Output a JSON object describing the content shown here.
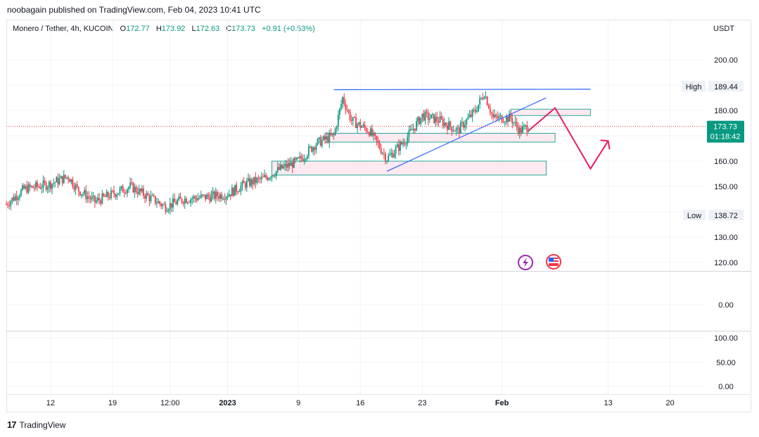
{
  "header": {
    "publisher": "noobagain published on TradingView.com, Feb 04, 2023 10:41 UTC"
  },
  "legend": {
    "symbol": "Monero / Tether, 4h, KUCOIN",
    "open_label": "O",
    "open": "172.77",
    "high_label": "H",
    "high": "173.92",
    "low_label": "L",
    "low": "172.63",
    "close_label": "C",
    "close": "173.73",
    "change": "+0.91 (+0.53%)"
  },
  "price_axis": {
    "currency": "USDT",
    "ticks": [
      "200.00",
      "180.00",
      "160.00",
      "150.00",
      "130.00",
      "120.00"
    ],
    "high_tag": {
      "label": "High",
      "value": "189.44"
    },
    "low_tag": {
      "label": "Low",
      "value": "138.72"
    },
    "last_price": {
      "value": "173.73",
      "countdown": "01:18:42"
    }
  },
  "indicator_panes": [
    {
      "ticks": [
        "0.00"
      ]
    },
    {
      "ticks": [
        "100.00",
        "50.00",
        "0.00"
      ]
    }
  ],
  "time_axis": {
    "labels": [
      "12",
      "19",
      "12:00",
      "2023",
      "9",
      "16",
      "23",
      "Feb",
      "13",
      "20"
    ]
  },
  "footer": {
    "brand": "TradingView"
  },
  "colors": {
    "up": "#089981",
    "down": "#f23645",
    "trendline": "#2962ff",
    "projection": "#e91e63",
    "zone_fill": "#fce4ec",
    "zone_border": "#26a69a",
    "last_price_bg": "#089981"
  },
  "chart_data": {
    "type": "candlestick",
    "title": "Monero / Tether, 4h, KUCOIN",
    "ylabel": "USDT",
    "ylim": [
      113,
      207
    ],
    "x_range": [
      "2022-12-07",
      "2023-02-24"
    ],
    "daily_closes": [
      {
        "date": "2022-12-07",
        "close": 143
      },
      {
        "date": "2022-12-09",
        "close": 149
      },
      {
        "date": "2022-12-12",
        "close": 151
      },
      {
        "date": "2022-12-14",
        "close": 154
      },
      {
        "date": "2022-12-15",
        "close": 149
      },
      {
        "date": "2022-12-17",
        "close": 144
      },
      {
        "date": "2022-12-19",
        "close": 147
      },
      {
        "date": "2022-12-21",
        "close": 150
      },
      {
        "date": "2022-12-23",
        "close": 146
      },
      {
        "date": "2022-12-25",
        "close": 142
      },
      {
        "date": "2022-12-27",
        "close": 145
      },
      {
        "date": "2022-12-30",
        "close": 146
      },
      {
        "date": "2023-01-01",
        "close": 147
      },
      {
        "date": "2023-01-03",
        "close": 151
      },
      {
        "date": "2023-01-05",
        "close": 153
      },
      {
        "date": "2023-01-07",
        "close": 157
      },
      {
        "date": "2023-01-09",
        "close": 160
      },
      {
        "date": "2023-01-11",
        "close": 167
      },
      {
        "date": "2023-01-13",
        "close": 170
      },
      {
        "date": "2023-01-14",
        "close": 185
      },
      {
        "date": "2023-01-15",
        "close": 176
      },
      {
        "date": "2023-01-17",
        "close": 172
      },
      {
        "date": "2023-01-19",
        "close": 161
      },
      {
        "date": "2023-01-21",
        "close": 168
      },
      {
        "date": "2023-01-23",
        "close": 178
      },
      {
        "date": "2023-01-25",
        "close": 176
      },
      {
        "date": "2023-01-27",
        "close": 172
      },
      {
        "date": "2023-01-29",
        "close": 180
      },
      {
        "date": "2023-01-30",
        "close": 187
      },
      {
        "date": "2023-01-31",
        "close": 177
      },
      {
        "date": "2023-02-02",
        "close": 177
      },
      {
        "date": "2023-02-03",
        "close": 172
      },
      {
        "date": "2023-02-04",
        "close": 173.73
      }
    ],
    "annotations": {
      "resistance_line": {
        "from": {
          "date": "2023-01-13",
          "price": 188.2
        },
        "to": {
          "date": "2023-02-11",
          "price": 188.4
        }
      },
      "rising_trendline": {
        "from": {
          "date": "2023-01-19",
          "price": 156
        },
        "to": {
          "date": "2023-02-06",
          "price": 185
        }
      },
      "zones": [
        {
          "from": "2023-01-06",
          "to": "2023-02-06",
          "top": 160,
          "bottom": 154.5
        },
        {
          "from": "2023-01-12",
          "to": "2023-02-07",
          "top": 171,
          "bottom": 167.5
        },
        {
          "from": "2023-02-02",
          "to": "2023-02-11",
          "top": 180.5,
          "bottom": 178
        }
      ],
      "projection_path": [
        {
          "date": "2023-02-04",
          "price": 172
        },
        {
          "date": "2023-02-07",
          "price": 181
        },
        {
          "date": "2023-02-11",
          "price": 157
        },
        {
          "date": "2023-02-13",
          "price": 168
        }
      ],
      "high": 189.44,
      "low": 138.72
    }
  }
}
